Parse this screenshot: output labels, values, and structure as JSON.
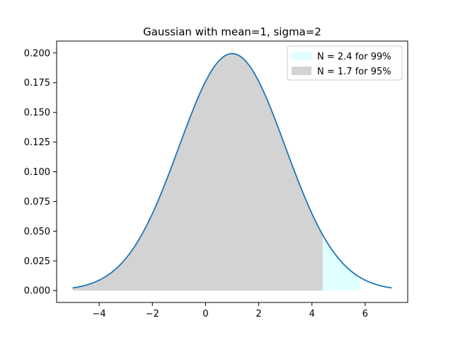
{
  "chart_data": {
    "type": "area",
    "title": "Gaussian with mean=1, sigma=2",
    "xlabel": "",
    "ylabel": "",
    "distribution": {
      "mean": 1,
      "sigma": 2
    },
    "xlim": [
      -5.6,
      7.6
    ],
    "ylim": [
      -0.01,
      0.21
    ],
    "x_range": [
      -5,
      7
    ],
    "x_ticks": [
      -4,
      -2,
      0,
      2,
      4,
      6
    ],
    "x_tick_labels": [
      "−4",
      "−2",
      "0",
      "2",
      "4",
      "6"
    ],
    "y_ticks": [
      0.0,
      0.025,
      0.05,
      0.075,
      0.1,
      0.125,
      0.15,
      0.175,
      0.2
    ],
    "y_tick_labels": [
      "0.000",
      "0.025",
      "0.050",
      "0.075",
      "0.100",
      "0.125",
      "0.150",
      "0.175",
      "0.200"
    ],
    "grid": false,
    "legend_position": "top-right",
    "series": [
      {
        "name": "N = 2.4 for 99%",
        "fill_from": -5,
        "fill_to": 5.8,
        "color": "#e0ffff"
      },
      {
        "name": "N = 1.7 for 95%",
        "fill_from": -5,
        "fill_to": 4.4,
        "color": "#d3d3d3"
      }
    ],
    "line_color": "#1f77b4"
  }
}
